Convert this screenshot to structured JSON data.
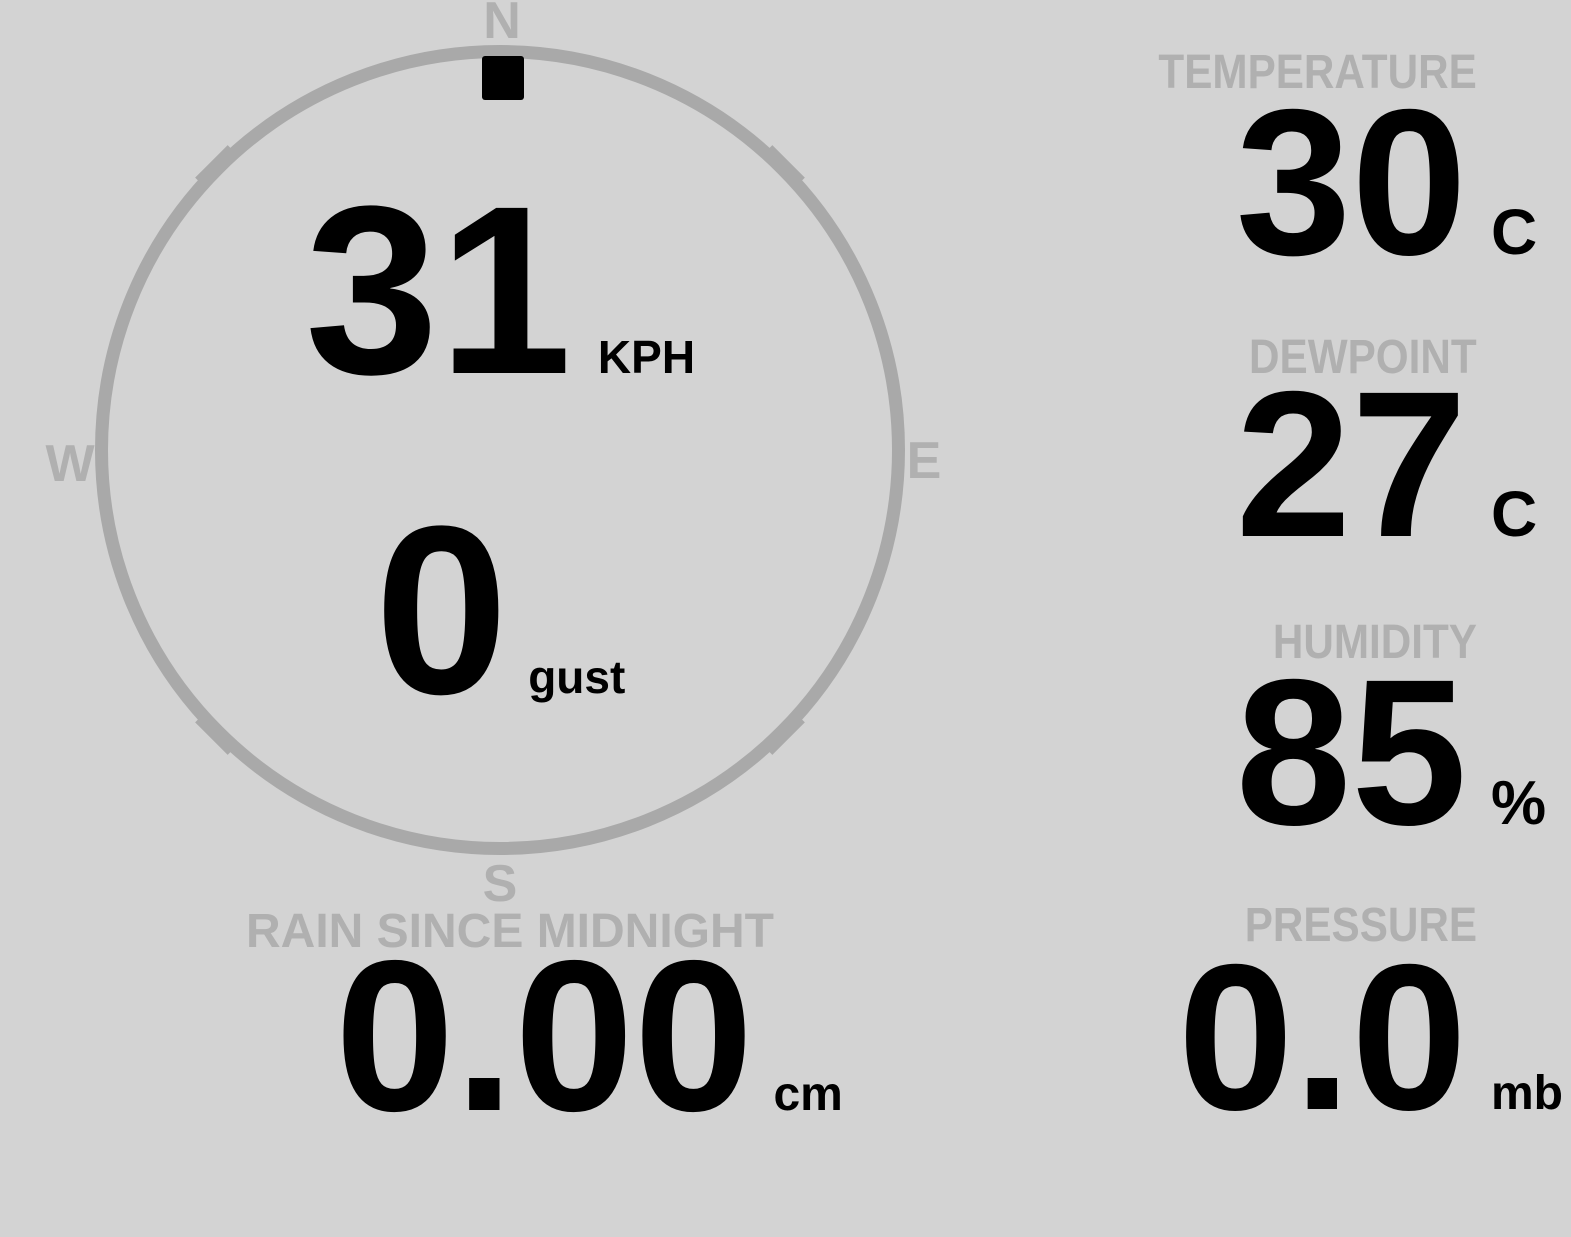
{
  "colors": {
    "background": "#d3d3d3",
    "dial": "#a9a9a9",
    "label": "#b0b0b0",
    "value": "#000000"
  },
  "compass": {
    "cardinals": {
      "north": "N",
      "east": "E",
      "south": "S",
      "west": "W"
    },
    "wind_direction": "N",
    "speed": {
      "value": "31",
      "unit": "KPH"
    },
    "gust": {
      "value": "0",
      "unit": "gust"
    }
  },
  "metrics": {
    "temperature": {
      "label": "TEMPERATURE",
      "value": "30",
      "unit": "C"
    },
    "dewpoint": {
      "label": "DEWPOINT",
      "value": "27",
      "unit": "C"
    },
    "humidity": {
      "label": "HUMIDITY",
      "value": "85",
      "unit": "%"
    },
    "pressure": {
      "label": "PRESSURE",
      "value": "0.0",
      "unit": "mb"
    },
    "rain": {
      "label": "RAIN SINCE MIDNIGHT",
      "value": "0.00",
      "unit": "cm"
    }
  }
}
